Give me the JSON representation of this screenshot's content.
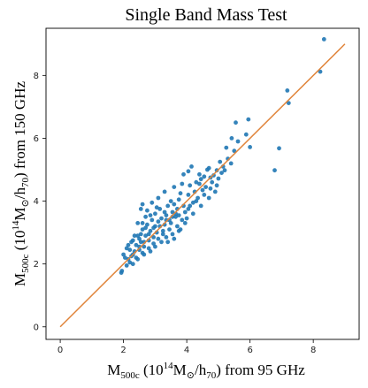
{
  "chart_data": {
    "type": "scatter",
    "title": "Single Band Mass Test",
    "xlabel": {
      "main": "M",
      "sub": "500c",
      "rest_open": " (10",
      "sup": "14",
      "rest_mid": "M",
      "sun": "⊙",
      "rest_end": "/h",
      "sub2": "70",
      "tail": ") from 95 GHz"
    },
    "ylabel": {
      "main": "M",
      "sub": "500c",
      "rest_open": " (10",
      "sup": "14",
      "rest_mid": "M",
      "sun": "⊙",
      "rest_end": "/h",
      "sub2": "70",
      "tail": ") from 150 GHz"
    },
    "xlim": [
      -0.45,
      9.45
    ],
    "ylim": [
      -0.4,
      9.5
    ],
    "xticks": [
      0,
      2,
      4,
      6,
      8
    ],
    "yticks": [
      0,
      2,
      4,
      6,
      8
    ],
    "grid": false,
    "point_color": "#1f77b4",
    "line_color": "#e0843a",
    "reference_line": {
      "x": [
        0,
        9
      ],
      "y": [
        0,
        9
      ]
    },
    "points": [
      [
        8.34,
        9.15
      ],
      [
        8.22,
        8.12
      ],
      [
        7.18,
        7.52
      ],
      [
        7.22,
        7.12
      ],
      [
        6.78,
        4.98
      ],
      [
        6.92,
        5.68
      ],
      [
        5.95,
        6.6
      ],
      [
        5.88,
        6.12
      ],
      [
        6.0,
        5.72
      ],
      [
        5.55,
        6.5
      ],
      [
        5.62,
        5.9
      ],
      [
        5.5,
        5.6
      ],
      [
        5.4,
        5.2
      ],
      [
        5.3,
        5.35
      ],
      [
        5.2,
        4.98
      ],
      [
        5.42,
        6.0
      ],
      [
        5.1,
        4.9
      ],
      [
        5.15,
        5.1
      ],
      [
        5.0,
        4.72
      ],
      [
        4.95,
        4.98
      ],
      [
        4.85,
        4.82
      ],
      [
        4.8,
        4.6
      ],
      [
        4.75,
        4.75
      ],
      [
        4.65,
        5.0
      ],
      [
        4.55,
        4.78
      ],
      [
        4.6,
        4.45
      ],
      [
        4.45,
        4.7
      ],
      [
        4.5,
        4.35
      ],
      [
        4.4,
        4.55
      ],
      [
        4.3,
        4.6
      ],
      [
        4.35,
        4.1
      ],
      [
        4.25,
        4.3
      ],
      [
        4.2,
        3.95
      ],
      [
        4.1,
        4.5
      ],
      [
        4.05,
        4.2
      ],
      [
        4.15,
        5.1
      ],
      [
        4.05,
        4.95
      ],
      [
        3.9,
        4.85
      ],
      [
        3.85,
        4.55
      ],
      [
        3.8,
        4.25
      ],
      [
        3.9,
        3.85
      ],
      [
        3.95,
        3.65
      ],
      [
        4.0,
        3.45
      ],
      [
        3.75,
        4.05
      ],
      [
        3.7,
        3.75
      ],
      [
        3.65,
        3.5
      ],
      [
        3.6,
        3.9
      ],
      [
        3.55,
        3.65
      ],
      [
        3.5,
        3.3
      ],
      [
        3.45,
        3.1
      ],
      [
        3.7,
        3.2
      ],
      [
        3.4,
        3.85
      ],
      [
        3.35,
        3.55
      ],
      [
        3.3,
        3.25
      ],
      [
        3.25,
        3.05
      ],
      [
        3.2,
        3.45
      ],
      [
        3.15,
        3.75
      ],
      [
        3.1,
        3.35
      ],
      [
        3.05,
        3.0
      ],
      [
        3.0,
        3.6
      ],
      [
        3.0,
        3.2
      ],
      [
        2.95,
        2.85
      ],
      [
        2.9,
        3.4
      ],
      [
        2.85,
        3.05
      ],
      [
        2.8,
        2.75
      ],
      [
        2.75,
        3.25
      ],
      [
        2.7,
        3.5
      ],
      [
        2.7,
        2.9
      ],
      [
        2.65,
        2.55
      ],
      [
        2.6,
        3.1
      ],
      [
        2.55,
        3.75
      ],
      [
        2.5,
        2.8
      ],
      [
        2.5,
        2.45
      ],
      [
        2.45,
        3.3
      ],
      [
        2.4,
        2.6
      ],
      [
        2.35,
        2.9
      ],
      [
        2.3,
        2.3
      ],
      [
        2.25,
        2.7
      ],
      [
        2.2,
        2.45
      ],
      [
        2.15,
        2.15
      ],
      [
        2.1,
        2.5
      ],
      [
        2.05,
        2.2
      ],
      [
        2.1,
        1.95
      ],
      [
        1.95,
        1.78
      ],
      [
        1.93,
        1.72
      ],
      [
        2.2,
        2.05
      ],
      [
        2.3,
        2.0
      ],
      [
        2.4,
        2.2
      ],
      [
        2.6,
        2.35
      ],
      [
        2.85,
        2.4
      ],
      [
        3.0,
        2.55
      ],
      [
        3.2,
        2.7
      ],
      [
        3.35,
        2.85
      ],
      [
        3.55,
        2.95
      ],
      [
        3.75,
        3.05
      ],
      [
        3.95,
        3.3
      ],
      [
        4.2,
        3.6
      ],
      [
        4.45,
        3.85
      ],
      [
        4.7,
        4.1
      ],
      [
        4.9,
        4.3
      ],
      [
        2.6,
        3.9
      ],
      [
        2.75,
        3.7
      ],
      [
        2.9,
        3.95
      ],
      [
        3.1,
        4.1
      ],
      [
        3.3,
        4.3
      ],
      [
        3.5,
        4.0
      ],
      [
        3.6,
        4.45
      ],
      [
        3.4,
        2.7
      ],
      [
        3.6,
        2.8
      ],
      [
        3.8,
        3.1
      ],
      [
        2.45,
        2.15
      ],
      [
        2.55,
        2.7
      ],
      [
        2.65,
        2.3
      ],
      [
        2.8,
        2.5
      ],
      [
        2.95,
        2.65
      ],
      [
        3.1,
        2.8
      ],
      [
        3.25,
        2.95
      ],
      [
        3.45,
        3.4
      ],
      [
        3.65,
        3.6
      ],
      [
        3.85,
        3.4
      ],
      [
        4.05,
        3.75
      ],
      [
        4.3,
        4.0
      ],
      [
        4.55,
        4.2
      ],
      [
        4.75,
        4.4
      ],
      [
        4.95,
        4.5
      ],
      [
        5.05,
        5.25
      ],
      [
        5.25,
        5.7
      ],
      [
        4.7,
        5.05
      ],
      [
        4.4,
        4.85
      ],
      [
        4.1,
        3.85
      ],
      [
        3.3,
        3.65
      ],
      [
        3.05,
        3.8
      ],
      [
        2.85,
        3.55
      ],
      [
        2.7,
        3.15
      ],
      [
        2.55,
        2.95
      ],
      [
        2.35,
        2.4
      ],
      [
        2.25,
        2.25
      ],
      [
        2.5,
        2.55
      ],
      [
        2.65,
        2.7
      ],
      [
        2.8,
        2.95
      ],
      [
        2.95,
        3.15
      ],
      [
        3.15,
        3.2
      ],
      [
        3.35,
        3.4
      ],
      [
        3.55,
        3.5
      ],
      [
        3.75,
        3.55
      ],
      [
        2.15,
        2.6
      ],
      [
        2.0,
        2.3
      ],
      [
        2.3,
        2.75
      ],
      [
        2.45,
        2.9
      ],
      [
        2.6,
        3.3
      ]
    ]
  }
}
